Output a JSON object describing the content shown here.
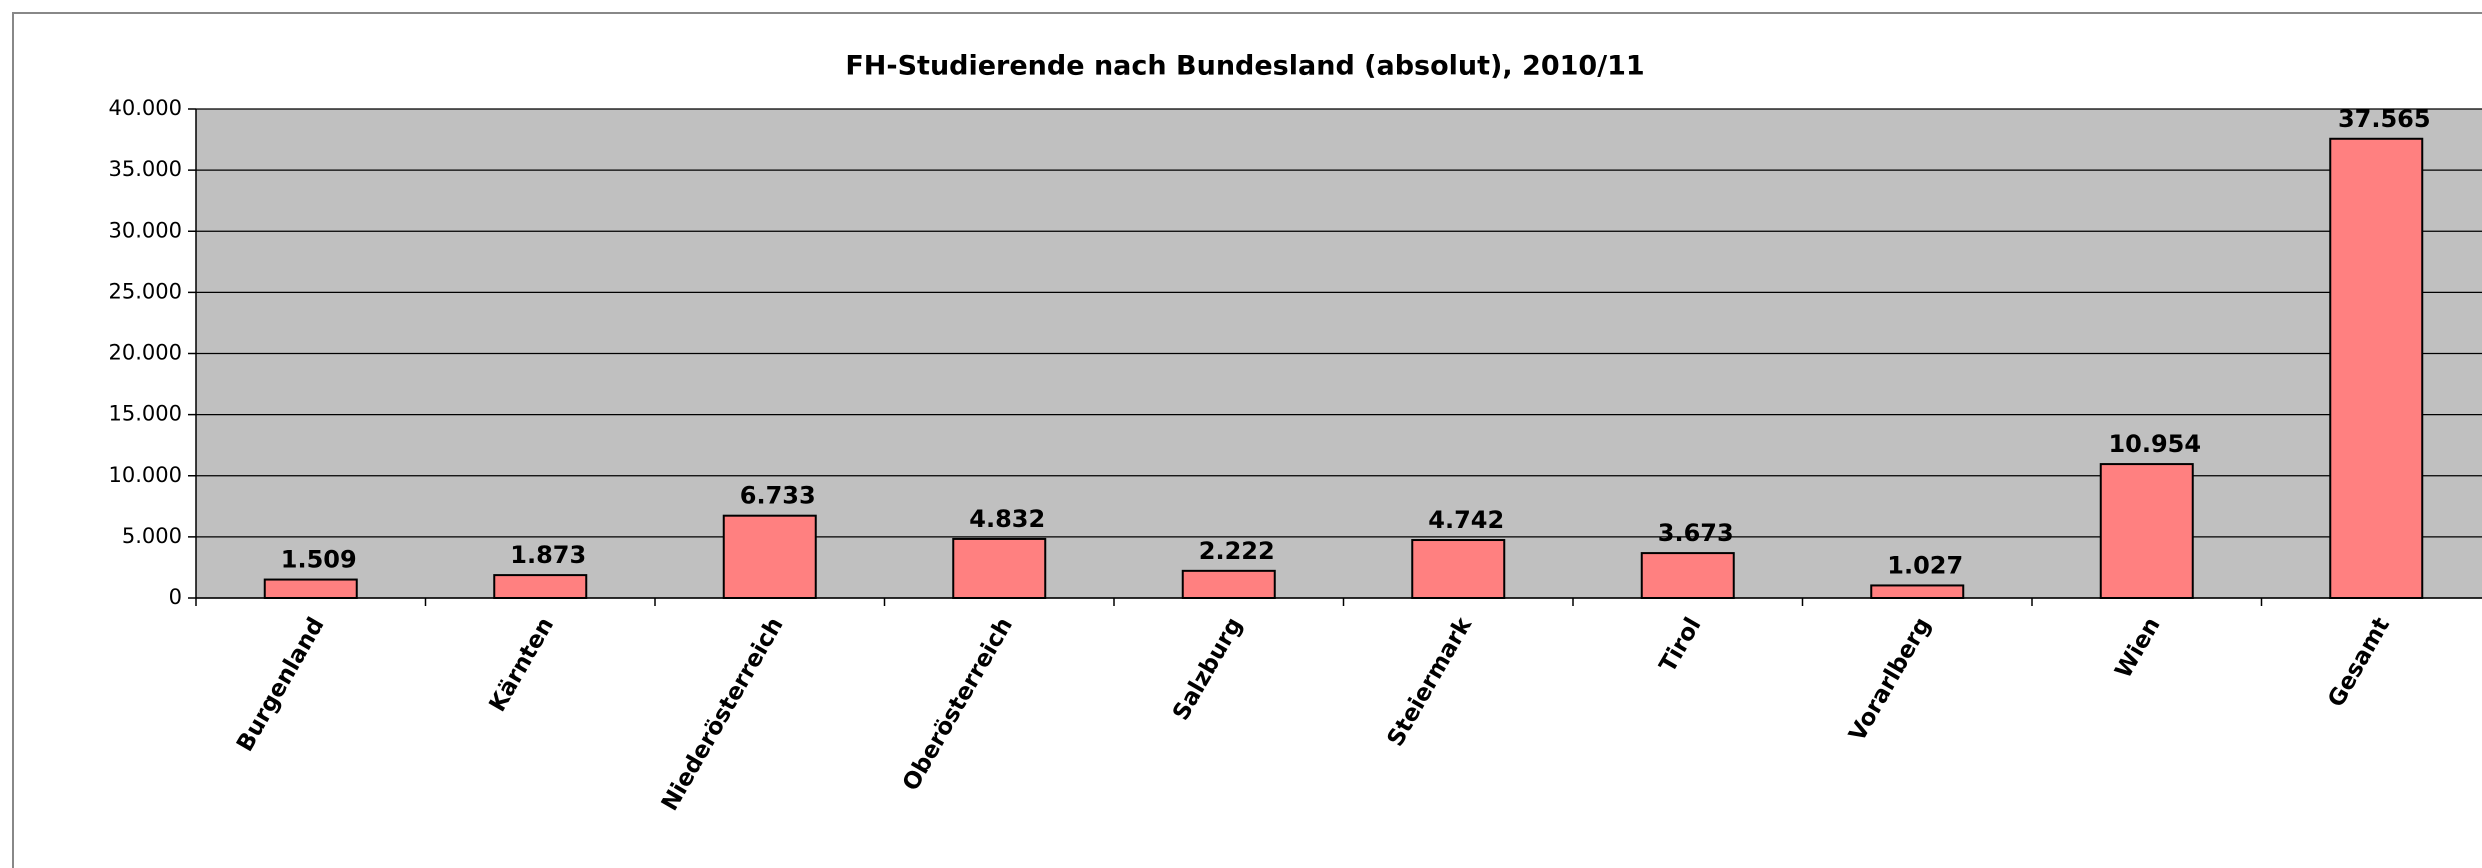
{
  "chart_data": {
    "type": "bar",
    "title": "FH-Studierende nach Bundesland (absolut), 2010/11",
    "categories": [
      "Burgenland",
      "Kärnten",
      "Niederösterreich",
      "Oberösterreich",
      "Salzburg",
      "Steiermark",
      "Tirol",
      "Vorarlberg",
      "Wien",
      "Gesamt"
    ],
    "values": [
      1509,
      1873,
      6733,
      4832,
      2222,
      4742,
      3673,
      1027,
      10954,
      37565
    ],
    "value_labels": [
      "1.509",
      "1.873",
      "6.733",
      "4.832",
      "2.222",
      "4.742",
      "3.673",
      "1.027",
      "10.954",
      "37.565"
    ],
    "color": "#ff8080",
    "ylim": [
      0,
      40000
    ],
    "yticks": [
      0,
      {
        "value": 5000,
        "label": "5.000"
      },
      {
        "value": 10000,
        "label": "10.000"
      },
      {
        "value": 15000,
        "label": "15.000"
      },
      {
        "value": 20000,
        "label": "20.000"
      },
      {
        "value": 25000,
        "label": "25.000"
      },
      {
        "value": 30000,
        "label": "30.000"
      },
      {
        "value": 35000,
        "label": "35.000"
      },
      {
        "value": 40000,
        "label": "40.000"
      }
    ],
    "grid": true
  }
}
